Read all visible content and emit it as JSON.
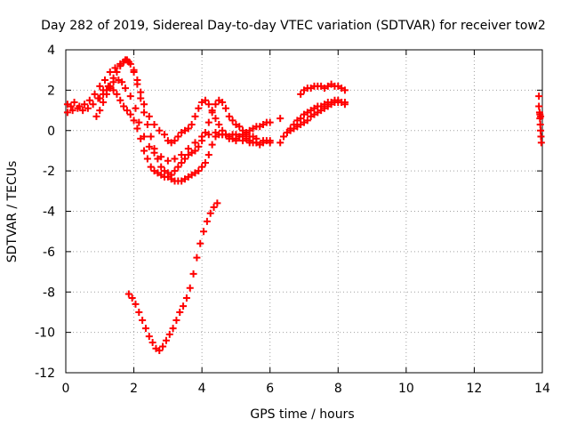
{
  "chart_data": {
    "type": "scatter",
    "title": "Day 282 of 2019, Sidereal Day-to-day VTEC variation (SDTVAR) for receiver tow2",
    "xlabel": "GPS time / hours",
    "ylabel": "SDTVAR / TECUs",
    "xlim": [
      0,
      14
    ],
    "ylim": [
      -12,
      4
    ],
    "xticks": [
      "0",
      "2",
      "4",
      "6",
      "8",
      "10",
      "12",
      "14"
    ],
    "yticks": [
      "4",
      "2",
      "0",
      "-2",
      "-4",
      "-6",
      "-8",
      "-10",
      "-12"
    ],
    "grid": true,
    "legend": "none",
    "marker": "+",
    "marker_color": "#ff0000",
    "series": [
      {
        "x": [
          0.05,
          0.15,
          0.25,
          0.4,
          0.55,
          0.7,
          0.85,
          1.0,
          1.15,
          1.3,
          1.45,
          1.6,
          1.75,
          1.85,
          2.0,
          2.1,
          2.2,
          2.3,
          2.45,
          2.6,
          2.75,
          2.9,
          3.0,
          3.1,
          3.2,
          3.3,
          3.4,
          3.5,
          3.6,
          3.7,
          3.8,
          3.9,
          4.0,
          4.1,
          4.2,
          4.3,
          4.4,
          4.5,
          4.6,
          4.7,
          4.8,
          4.9,
          5.0,
          5.1,
          5.2,
          5.3,
          5.4,
          5.5,
          5.6,
          5.7,
          5.8,
          5.9,
          6.0
        ],
        "y": [
          1.3,
          1.2,
          1.4,
          1.2,
          1.3,
          1.5,
          1.8,
          2.2,
          2.5,
          2.9,
          3.1,
          3.3,
          3.5,
          3.4,
          3.0,
          2.5,
          1.9,
          1.3,
          0.7,
          0.3,
          0.0,
          -0.2,
          -0.5,
          -0.6,
          -0.5,
          -0.3,
          -0.1,
          0.0,
          0.1,
          0.3,
          0.7,
          1.1,
          1.4,
          1.5,
          1.3,
          1.0,
          0.6,
          0.3,
          0.0,
          -0.2,
          -0.3,
          -0.4,
          -0.4,
          -0.3,
          -0.3,
          -0.4,
          -0.5,
          -0.6,
          -0.6,
          -0.7,
          -0.6,
          -0.5,
          -0.6
        ]
      },
      {
        "x": [
          0.05,
          0.2,
          0.35,
          0.5,
          0.65,
          0.8,
          0.95,
          1.1,
          1.25,
          1.4,
          1.55,
          1.65,
          1.75,
          1.9,
          2.05,
          2.15,
          2.3,
          2.45,
          2.6,
          2.8,
          3.0,
          3.2,
          3.4,
          3.6,
          3.8,
          4.0,
          4.2,
          4.4,
          4.6,
          4.8,
          5.0,
          5.2,
          5.4,
          5.6,
          5.8,
          6.0
        ],
        "y": [
          0.9,
          1.0,
          1.1,
          1.0,
          1.1,
          1.3,
          1.6,
          2.0,
          2.2,
          2.4,
          2.5,
          2.4,
          2.1,
          1.7,
          1.1,
          0.4,
          -0.3,
          -0.8,
          -1.1,
          -1.3,
          -1.5,
          -1.4,
          -1.2,
          -0.9,
          -0.6,
          -0.3,
          -0.2,
          -0.1,
          -0.2,
          -0.4,
          -0.5,
          -0.5,
          -0.6,
          -0.6,
          -0.5,
          -0.5
        ]
      },
      {
        "x": [
          0.9,
          1.0,
          1.1,
          1.2,
          1.3,
          1.4,
          1.5,
          1.6,
          1.7,
          1.8,
          1.9,
          2.0,
          2.1,
          2.2,
          2.3,
          2.4,
          2.5,
          2.6,
          2.7,
          2.8,
          2.9,
          3.0,
          3.1,
          3.2,
          3.3,
          3.4,
          3.5,
          3.6,
          3.7,
          3.8,
          3.9,
          4.0,
          4.1,
          4.2,
          4.3,
          4.4,
          4.5,
          4.6,
          4.7,
          4.8,
          4.9,
          5.0,
          5.1,
          5.2,
          5.3,
          5.4,
          5.5,
          5.6,
          5.7,
          5.8,
          5.9,
          6.0
        ],
        "y": [
          0.7,
          1.0,
          1.4,
          1.8,
          2.2,
          2.6,
          2.9,
          3.2,
          3.4,
          3.5,
          3.3,
          2.9,
          2.3,
          1.6,
          0.9,
          0.3,
          -0.3,
          -0.9,
          -1.4,
          -1.8,
          -2.0,
          -2.1,
          -2.2,
          -2.0,
          -1.8,
          -1.6,
          -1.4,
          -1.2,
          -1.1,
          -1.0,
          -0.8,
          -0.5,
          -0.1,
          0.4,
          0.9,
          1.3,
          1.5,
          1.4,
          1.1,
          0.7,
          0.5,
          0.3,
          0.2,
          0.0,
          -0.1,
          0.0,
          0.1,
          0.2,
          0.2,
          0.3,
          0.4,
          0.4
        ]
      },
      {
        "x": [
          1.0,
          1.1,
          1.2,
          1.3,
          1.4,
          1.5,
          1.6,
          1.7,
          1.8,
          1.9,
          2.0,
          2.1,
          2.2,
          2.3,
          2.4,
          2.5,
          2.6,
          2.7,
          2.8,
          2.9,
          3.0,
          3.1,
          3.2,
          3.3,
          3.4,
          3.5,
          3.6,
          3.7,
          3.8,
          3.9,
          4.0,
          4.1,
          4.2,
          4.3,
          4.4,
          4.5,
          4.6,
          4.7,
          4.8,
          4.9,
          5.0,
          5.1,
          5.2,
          5.3,
          5.4,
          5.5,
          5.6
        ],
        "y": [
          1.6,
          1.8,
          2.0,
          2.1,
          2.0,
          1.8,
          1.5,
          1.2,
          1.0,
          0.8,
          0.5,
          0.1,
          -0.4,
          -1.0,
          -1.4,
          -1.8,
          -2.0,
          -2.1,
          -2.2,
          -2.3,
          -2.3,
          -2.4,
          -2.5,
          -2.5,
          -2.5,
          -2.4,
          -2.3,
          -2.2,
          -2.1,
          -2.0,
          -1.8,
          -1.6,
          -1.2,
          -0.7,
          -0.3,
          -0.2,
          -0.2,
          -0.2,
          -0.3,
          -0.2,
          -0.2,
          -0.3,
          -0.2,
          -0.2,
          -0.3,
          -0.3,
          -0.4
        ]
      },
      {
        "x": [
          1.85,
          1.95,
          2.05,
          2.15,
          2.25,
          2.35,
          2.45,
          2.55,
          2.65,
          2.75,
          2.85,
          2.95,
          3.05,
          3.15,
          3.25,
          3.35,
          3.45,
          3.55,
          3.65,
          3.75,
          3.85,
          3.95,
          4.05,
          4.15,
          4.25,
          4.35,
          4.45
        ],
        "y": [
          -8.1,
          -8.3,
          -8.6,
          -9.0,
          -9.4,
          -9.8,
          -10.2,
          -10.5,
          -10.8,
          -10.9,
          -10.7,
          -10.4,
          -10.1,
          -9.8,
          -9.4,
          -9.0,
          -8.7,
          -8.3,
          -7.8,
          -7.1,
          -6.3,
          -5.6,
          -5.0,
          -4.5,
          -4.1,
          -3.8,
          -3.6
        ]
      },
      {
        "x": [
          6.3,
          6.4,
          6.5,
          6.6,
          6.7,
          6.8,
          6.9,
          7.0,
          7.1,
          7.2,
          7.3,
          7.4,
          7.5,
          7.6,
          7.7,
          7.8,
          7.9,
          8.0,
          8.1,
          8.2
        ],
        "y": [
          -0.6,
          -0.3,
          -0.1,
          0.1,
          0.3,
          0.5,
          0.6,
          0.8,
          0.9,
          1.0,
          1.1,
          1.2,
          1.2,
          1.3,
          1.4,
          1.4,
          1.5,
          1.5,
          1.4,
          1.4
        ]
      },
      {
        "x": [
          6.4,
          6.5,
          6.6,
          6.7,
          6.8,
          6.9,
          7.0,
          7.1,
          7.2,
          7.3,
          7.4,
          7.5,
          7.6,
          7.7,
          7.8,
          7.9,
          8.0,
          8.1,
          8.2
        ],
        "y": [
          -0.3,
          -0.1,
          0.0,
          0.1,
          0.2,
          0.3,
          0.4,
          0.5,
          0.7,
          0.8,
          0.9,
          1.0,
          1.1,
          1.2,
          1.3,
          1.4,
          1.4,
          1.4,
          1.3
        ]
      },
      {
        "x": [
          6.9,
          7.0,
          7.1,
          7.2,
          7.3,
          7.4,
          7.5,
          7.6,
          7.7,
          7.8,
          7.9,
          8.0,
          8.1,
          8.2,
          6.3
        ],
        "y": [
          1.8,
          2.0,
          2.1,
          2.1,
          2.2,
          2.2,
          2.2,
          2.1,
          2.2,
          2.3,
          2.2,
          2.2,
          2.1,
          2.0,
          0.6
        ]
      },
      {
        "x": [
          13.9,
          13.9,
          13.92,
          13.93,
          13.94,
          13.95,
          13.96,
          13.97,
          13.95,
          13.93
        ],
        "y": [
          1.7,
          1.2,
          0.9,
          0.6,
          0.3,
          0.0,
          -0.3,
          -0.6,
          0.7,
          0.8
        ]
      }
    ]
  }
}
